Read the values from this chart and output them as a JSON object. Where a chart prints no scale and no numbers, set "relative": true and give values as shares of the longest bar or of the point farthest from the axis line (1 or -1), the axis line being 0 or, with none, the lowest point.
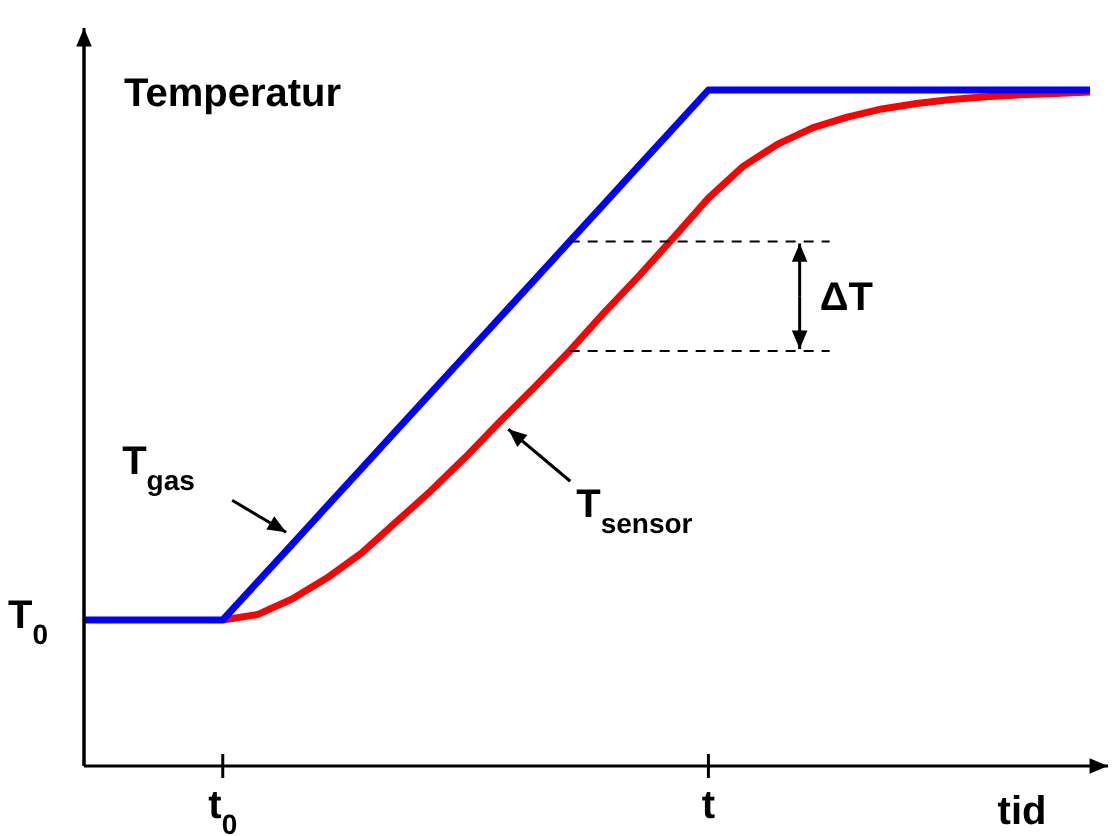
{
  "chart_data": {
    "type": "line",
    "relative": true,
    "ylabel": "Temperatur",
    "xlabel": "tid",
    "categories": [
      null,
      null,
      null,
      null,
      "t$_{0}$",
      null,
      null,
      null,
      null,
      null,
      null,
      null,
      null,
      null,
      null,
      null,
      null,
      null,
      "t",
      null,
      null,
      null,
      null,
      null,
      null,
      null,
      null,
      null,
      null,
      null
    ],
    "series": [
      {
        "name": "T$_{gas}$",
        "color": "#0000ff",
        "values": [
          0.216,
          0.216,
          0.216,
          0.216,
          0.216,
          0.272,
          0.328,
          0.384,
          0.44,
          0.496,
          0.552,
          0.608,
          0.664,
          0.72,
          0.776,
          0.832,
          0.888,
          0.944,
          1,
          1,
          1,
          1,
          1,
          1,
          1,
          1,
          1,
          1,
          1,
          1
        ]
      },
      {
        "name": "T$_{sensor}$",
        "color": "#ff0000",
        "values": [
          null,
          null,
          null,
          null,
          0.216,
          0.224,
          0.247,
          0.278,
          0.315,
          0.361,
          0.407,
          0.457,
          0.51,
          0.561,
          0.614,
          0.671,
          0.725,
          0.782,
          0.84,
          0.887,
          0.92,
          0.944,
          0.96,
          0.972,
          0.98,
          0.986,
          0.99,
          0.993,
          0.995,
          0.997
        ]
      }
    ],
    "annotations": [
      "ΔT",
      "T$_{0}$"
    ],
    "grid": false,
    "legend": false,
    "marker": "none",
    "line_style": "solid"
  }
}
